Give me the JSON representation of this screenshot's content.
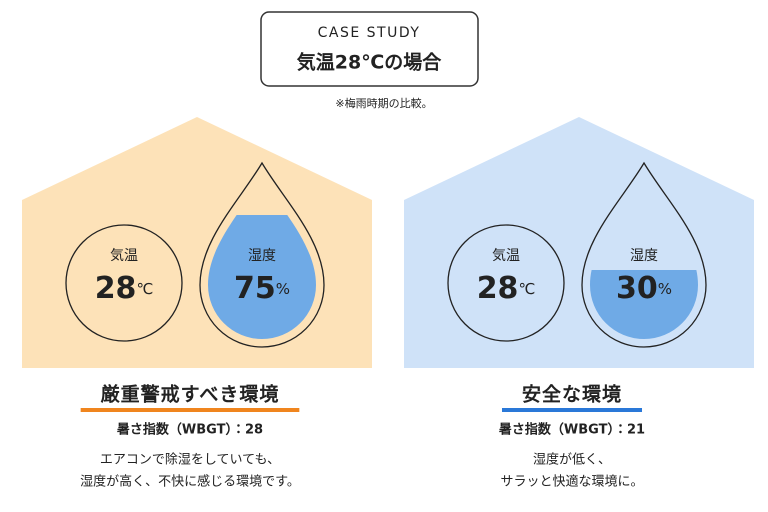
{
  "header": {
    "label": "CASE STUDY",
    "title": "気温28℃の場合",
    "note": "※梅雨時期の比較。"
  },
  "panels": [
    {
      "temp_label": "気温",
      "temp_value": "28",
      "temp_unit": "℃",
      "humidity_label": "湿度",
      "humidity_value": "75",
      "humidity_unit": "%",
      "heading": "厳重警戒すべき環境",
      "wbgt": "暑さ指数（WBGT）：28",
      "description": [
        "エアコンで除湿をしていても、",
        "湿度が高く、不快に感じる環境です。"
      ]
    },
    {
      "temp_label": "気温",
      "temp_value": "28",
      "temp_unit": "℃",
      "humidity_label": "湿度",
      "humidity_value": "30",
      "humidity_unit": "%",
      "heading": "安全な環境",
      "wbgt": "暑さ指数（WBGT）：21",
      "description": [
        "湿度が低く、",
        "サラッと快適な環境に。"
      ]
    }
  ]
}
